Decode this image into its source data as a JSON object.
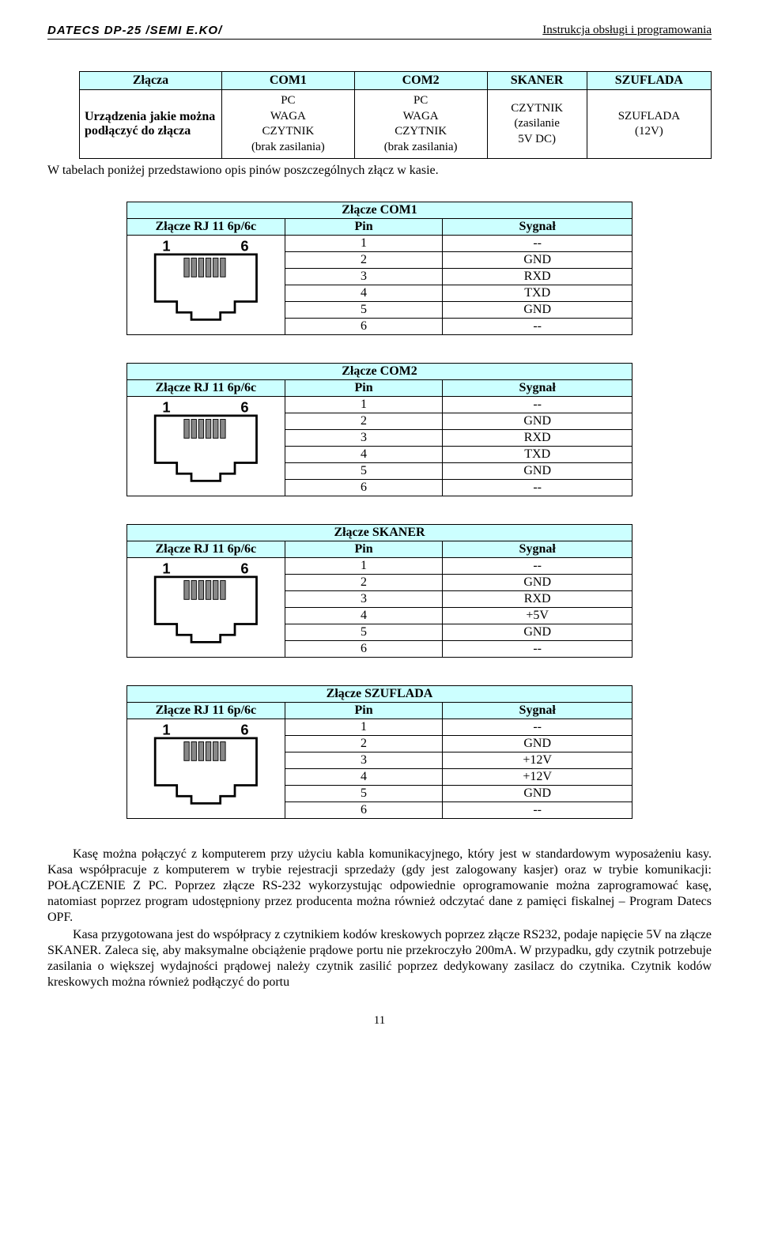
{
  "header": {
    "left": "DATECS DP-25 /SEMI E.KO/",
    "right": "Instrukcja obsługi i programowania"
  },
  "ports_table": {
    "headers": [
      "Złącza",
      "COM1",
      "COM2",
      "SKANER",
      "SZUFLADA"
    ],
    "row_label": "Urządzenia jakie można podłączyć do złącza",
    "com1": "PC\nWAGA\nCZYTNIK\n(brak zasilania)",
    "com2": "PC\nWAGA\nCZYTNIK\n(brak zasilania)",
    "skaner": "CZYTNIK\n(zasilanie\n5V DC)",
    "szuflada": "SZUFLADA\n(12V)"
  },
  "intro": "W tabelach poniżej przedstawiono opis pinów poszczególnych złącz w kasie.",
  "pin_tables": [
    {
      "title": "Złącze COM1",
      "connector": "Złącze RJ 11 6p/6c",
      "col_pin": "Pin",
      "col_signal": "Sygnał",
      "rows": [
        [
          "1",
          "--"
        ],
        [
          "2",
          "GND"
        ],
        [
          "3",
          "RXD"
        ],
        [
          "4",
          "TXD"
        ],
        [
          "5",
          "GND"
        ],
        [
          "6",
          "--"
        ]
      ]
    },
    {
      "title": "Złącze COM2",
      "connector": "Złącze RJ 11 6p/6c",
      "col_pin": "Pin",
      "col_signal": "Sygnał",
      "rows": [
        [
          "1",
          "--"
        ],
        [
          "2",
          "GND"
        ],
        [
          "3",
          "RXD"
        ],
        [
          "4",
          "TXD"
        ],
        [
          "5",
          "GND"
        ],
        [
          "6",
          "--"
        ]
      ]
    },
    {
      "title": "Złącze SKANER",
      "connector": "Złącze RJ 11 6p/6c",
      "col_pin": "Pin",
      "col_signal": "Sygnał",
      "rows": [
        [
          "1",
          "--"
        ],
        [
          "2",
          "GND"
        ],
        [
          "3",
          "RXD"
        ],
        [
          "4",
          "+5V"
        ],
        [
          "5",
          "GND"
        ],
        [
          "6",
          "--"
        ]
      ]
    },
    {
      "title": "Złącze SZUFLADA",
      "connector": "Złącze RJ 11 6p/6c",
      "col_pin": "Pin",
      "col_signal": "Sygnał",
      "rows": [
        [
          "1",
          "--"
        ],
        [
          "2",
          "GND"
        ],
        [
          "3",
          "+12V"
        ],
        [
          "4",
          "+12V"
        ],
        [
          "5",
          "GND"
        ],
        [
          "6",
          "--"
        ]
      ]
    }
  ],
  "body": {
    "p1": "Kasę można połączyć z komputerem przy użyciu kabla komunikacyjnego, który jest w standardowym wyposażeniu kasy. Kasa współpracuje z komputerem w trybie rejestracji sprzedaży (gdy jest zalogowany kasjer) oraz w trybie komunikacji: POŁĄCZENIE Z PC. Poprzez złącze RS-232 wykorzystując odpowiednie oprogramowanie można zaprogramować kasę, natomiast poprzez program udostępniony przez producenta można również odczytać dane z pamięci fiskalnej – Program Datecs OPF.",
    "p2": "Kasa przygotowana jest do współpracy z czytnikiem kodów kreskowych poprzez złącze RS232, podaje napięcie 5V na złącze SKANER. Zaleca się, aby maksymalne obciążenie prądowe portu nie przekroczyło 200mA. W przypadku, gdy czytnik potrzebuje zasilania o większej wydajności prądowej należy czytnik zasilić poprzez dedykowany zasilacz do czytnika. Czytnik kodów kreskowych można również podłączyć do portu"
  },
  "page_number": "11",
  "style": {
    "header_bg": "#ccffff",
    "border_color": "#000000",
    "rj_stroke": "#000000",
    "rj_pin_fill": "#888888"
  }
}
